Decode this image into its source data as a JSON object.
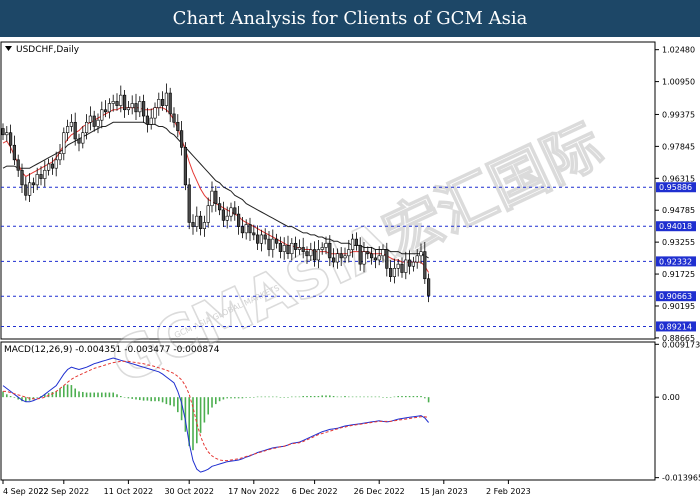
{
  "banner": {
    "title": "Chart Analysis for Clients of GCM Asia"
  },
  "watermark": {
    "text": "GCMASIA宏汇国际",
    "subtext": "GCM ASIA GLOBAL MARKETS"
  },
  "chart_data": {
    "type": "candlestick",
    "symbol_label": "USDCHF,Daily",
    "price_ylim": [
      0.8866,
      1.028
    ],
    "price_ticks": [
      "1.02480",
      "1.00950",
      "0.99375",
      "0.97845",
      "0.96315",
      "0.94785",
      "0.93255",
      "0.91725",
      "0.90195",
      "0.88665"
    ],
    "levels": [
      {
        "value": 0.95886,
        "label": "0.95886"
      },
      {
        "value": 0.94018,
        "label": "0.94018"
      },
      {
        "value": 0.92332,
        "label": "0.92332"
      },
      {
        "value": 0.90663,
        "label": "0.90663"
      },
      {
        "value": 0.89214,
        "label": "0.89214"
      }
    ],
    "close_series": [
      0.984,
      0.985,
      0.979,
      0.972,
      0.967,
      0.96,
      0.955,
      0.961,
      0.96,
      0.965,
      0.963,
      0.967,
      0.97,
      0.968,
      0.972,
      0.975,
      0.985,
      0.988,
      0.99,
      0.982,
      0.98,
      0.985,
      0.99,
      0.993,
      0.988,
      0.991,
      0.996,
      0.995,
      0.999,
      1.0,
      0.998,
      1.003,
      0.996,
      0.997,
      0.999,
      0.995,
      1.0,
      0.993,
      0.989,
      0.992,
      0.997,
      1.001,
      0.998,
      1.004,
      0.994,
      0.99,
      0.986,
      0.978,
      0.96,
      0.942,
      0.94,
      0.945,
      0.939,
      0.942,
      0.95,
      0.957,
      0.951,
      0.948,
      0.943,
      0.945,
      0.949,
      0.946,
      0.94,
      0.937,
      0.941,
      0.937,
      0.936,
      0.932,
      0.936,
      0.934,
      0.929,
      0.934,
      0.932,
      0.928,
      0.931,
      0.927,
      0.932,
      0.929,
      0.93,
      0.928,
      0.926,
      0.929,
      0.924,
      0.929,
      0.93,
      0.932,
      0.925,
      0.923,
      0.927,
      0.925,
      0.926,
      0.929,
      0.934,
      0.931,
      0.922,
      0.928,
      0.927,
      0.925,
      0.924,
      0.926,
      0.929,
      0.92,
      0.916,
      0.92,
      0.922,
      0.918,
      0.924,
      0.921,
      0.923,
      0.926,
      0.928,
      0.915,
      0.907
    ],
    "ma_fast_series": [
      0.98,
      0.981,
      0.978,
      0.974,
      0.97,
      0.966,
      0.964,
      0.965,
      0.966,
      0.967,
      0.968,
      0.969,
      0.97,
      0.971,
      0.973,
      0.976,
      0.979,
      0.982,
      0.984,
      0.985,
      0.986,
      0.988,
      0.989,
      0.99,
      0.991,
      0.992,
      0.993,
      0.994,
      0.995,
      0.996,
      0.996,
      0.997,
      0.997,
      0.997,
      0.997,
      0.997,
      0.997,
      0.996,
      0.996,
      0.996,
      0.997,
      0.997,
      0.997,
      0.996,
      0.994,
      0.991,
      0.987,
      0.982,
      0.977,
      0.971,
      0.966,
      0.962,
      0.958,
      0.955,
      0.953,
      0.952,
      0.951,
      0.95,
      0.949,
      0.948,
      0.947,
      0.946,
      0.945,
      0.943,
      0.942,
      0.941,
      0.94,
      0.939,
      0.938,
      0.937,
      0.936,
      0.935,
      0.934,
      0.933,
      0.932,
      0.931,
      0.931,
      0.93,
      0.93,
      0.929,
      0.929,
      0.929,
      0.928,
      0.928,
      0.928,
      0.928,
      0.927,
      0.927,
      0.927,
      0.927,
      0.927,
      0.927,
      0.928,
      0.928,
      0.928,
      0.928,
      0.928,
      0.927,
      0.927,
      0.927,
      0.927,
      0.926,
      0.925,
      0.924,
      0.924,
      0.923,
      0.923,
      0.923,
      0.923,
      0.923,
      0.923,
      0.921,
      0.918
    ],
    "ma_slow_series": [
      0.968,
      0.969,
      0.969,
      0.969,
      0.968,
      0.968,
      0.968,
      0.968,
      0.969,
      0.97,
      0.971,
      0.972,
      0.973,
      0.974,
      0.975,
      0.976,
      0.977,
      0.979,
      0.98,
      0.981,
      0.982,
      0.983,
      0.984,
      0.985,
      0.986,
      0.987,
      0.988,
      0.988,
      0.989,
      0.99,
      0.99,
      0.99,
      0.99,
      0.99,
      0.99,
      0.99,
      0.99,
      0.99,
      0.989,
      0.989,
      0.989,
      0.988,
      0.988,
      0.987,
      0.985,
      0.984,
      0.982,
      0.98,
      0.978,
      0.976,
      0.974,
      0.972,
      0.97,
      0.968,
      0.966,
      0.964,
      0.962,
      0.961,
      0.959,
      0.958,
      0.957,
      0.955,
      0.954,
      0.953,
      0.951,
      0.95,
      0.949,
      0.948,
      0.947,
      0.946,
      0.945,
      0.944,
      0.943,
      0.942,
      0.941,
      0.94,
      0.94,
      0.939,
      0.938,
      0.937,
      0.937,
      0.936,
      0.936,
      0.935,
      0.935,
      0.934,
      0.934,
      0.933,
      0.933,
      0.932,
      0.932,
      0.932,
      0.931,
      0.931,
      0.931,
      0.93,
      0.93,
      0.93,
      0.929,
      0.929,
      0.929,
      0.929,
      0.928,
      0.928,
      0.928,
      0.927,
      0.927,
      0.927,
      0.927,
      0.927,
      0.927,
      0.926,
      0.925
    ],
    "macd_label": "MACD(12,26,9) -0.004351 -0.003477 -0.000874",
    "macd_ylim": [
      -0.0142,
      0.0094
    ],
    "macd_ticks": [
      "0.009173",
      "0.00",
      "-0.013965"
    ],
    "macd_line": [
      0.002,
      0.0015,
      0.001,
      0.0005,
      0.0,
      -0.0005,
      -0.0008,
      -0.0008,
      -0.0006,
      -0.0003,
      0.0,
      0.0005,
      0.001,
      0.0015,
      0.002,
      0.003,
      0.004,
      0.0048,
      0.0052,
      0.005,
      0.0048,
      0.005,
      0.0052,
      0.0055,
      0.0058,
      0.006,
      0.0062,
      0.0064,
      0.0066,
      0.0068,
      0.0066,
      0.0064,
      0.0062,
      0.006,
      0.0058,
      0.0056,
      0.0054,
      0.0052,
      0.005,
      0.0048,
      0.0046,
      0.0044,
      0.004,
      0.0035,
      0.003,
      0.0025,
      0.001,
      -0.001,
      -0.004,
      -0.008,
      -0.011,
      -0.0125,
      -0.013,
      -0.0128,
      -0.0125,
      -0.012,
      -0.0118,
      -0.0116,
      -0.0114,
      -0.0112,
      -0.0111,
      -0.011,
      -0.0109,
      -0.0107,
      -0.0104,
      -0.0102,
      -0.0099,
      -0.0096,
      -0.0094,
      -0.0092,
      -0.009,
      -0.0088,
      -0.0087,
      -0.0086,
      -0.0085,
      -0.0083,
      -0.008,
      -0.0079,
      -0.0078,
      -0.0075,
      -0.0072,
      -0.0069,
      -0.0066,
      -0.0063,
      -0.006,
      -0.0058,
      -0.0056,
      -0.0055,
      -0.0054,
      -0.0052,
      -0.005,
      -0.0049,
      -0.0048,
      -0.0047,
      -0.0046,
      -0.0045,
      -0.0044,
      -0.0043,
      -0.0042,
      -0.0041,
      -0.0042,
      -0.0043,
      -0.0042,
      -0.004,
      -0.0038,
      -0.0037,
      -0.0036,
      -0.0035,
      -0.0034,
      -0.0033,
      -0.0032,
      -0.0036,
      -0.0044
    ],
    "signal_line": [
      0.001,
      0.001,
      0.0008,
      0.0006,
      0.0004,
      0.0002,
      0.0,
      -0.0002,
      -0.0003,
      -0.0003,
      -0.0002,
      0.0,
      0.0003,
      0.0006,
      0.001,
      0.0015,
      0.002,
      0.0026,
      0.0031,
      0.0035,
      0.0038,
      0.0041,
      0.0044,
      0.0047,
      0.005,
      0.0052,
      0.0054,
      0.0056,
      0.0058,
      0.006,
      0.0061,
      0.0062,
      0.0062,
      0.0062,
      0.0061,
      0.006,
      0.0059,
      0.0058,
      0.0056,
      0.0055,
      0.0053,
      0.0051,
      0.0049,
      0.0047,
      0.0044,
      0.0041,
      0.0036,
      0.003,
      0.002,
      0.0005,
      -0.0018,
      -0.0045,
      -0.0068,
      -0.0084,
      -0.0095,
      -0.0102,
      -0.0106,
      -0.0109,
      -0.011,
      -0.011,
      -0.0109,
      -0.0108,
      -0.0107,
      -0.0105,
      -0.0103,
      -0.0101,
      -0.0099,
      -0.0097,
      -0.0095,
      -0.0093,
      -0.0091,
      -0.0089,
      -0.0088,
      -0.0086,
      -0.0085,
      -0.0083,
      -0.0081,
      -0.008,
      -0.0079,
      -0.0077,
      -0.0074,
      -0.0071,
      -0.0068,
      -0.0065,
      -0.0063,
      -0.0061,
      -0.0059,
      -0.0057,
      -0.0055,
      -0.0053,
      -0.0052,
      -0.005,
      -0.0049,
      -0.0048,
      -0.0047,
      -0.0046,
      -0.0045,
      -0.0044,
      -0.0043,
      -0.0042,
      -0.0042,
      -0.0042,
      -0.0042,
      -0.0041,
      -0.004,
      -0.0039,
      -0.0038,
      -0.0037,
      -0.0036,
      -0.0035,
      -0.0034,
      -0.0034,
      -0.0035
    ],
    "x_tick_labels": [
      "4 Sep 2022",
      "22 Sep 2022",
      "11 Oct 2022",
      "30 Oct 2022",
      "17 Nov 2022",
      "6 Dec 2022",
      "26 Dec 2022",
      "15 Jan 2023",
      "2 Feb 2023"
    ],
    "x_tick_index": [
      0,
      16,
      33,
      49,
      66,
      82,
      99,
      116,
      133
    ],
    "colors": {
      "up": "#ffffff",
      "down": "#4a4a4a",
      "candle_stroke": "#000000",
      "ma_fast": "#e53935",
      "ma_slow": "#222222",
      "level_line": "#1f2fd0",
      "level_label_bg": "#1f2fd0",
      "macd_line": "#1f2fd0",
      "signal_line": "#e53935",
      "histogram": "#4caf50"
    }
  }
}
